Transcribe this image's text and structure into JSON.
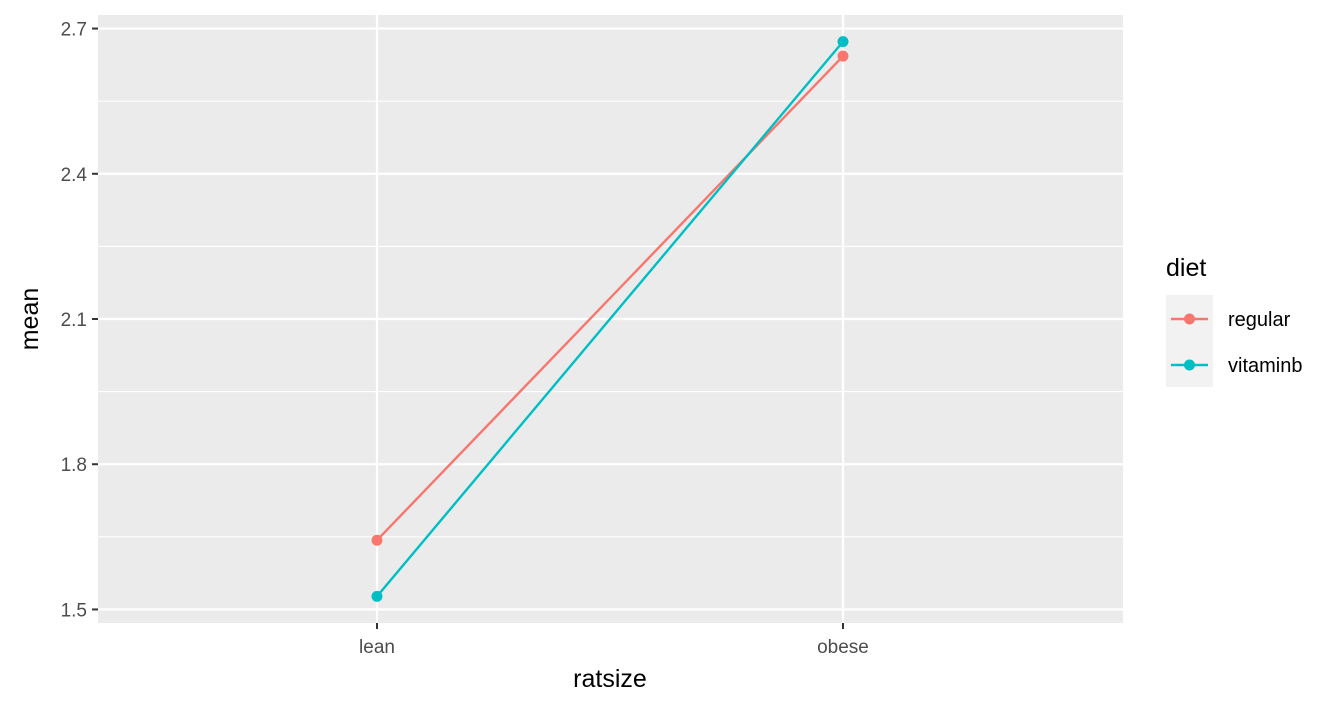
{
  "chart_data": {
    "type": "line",
    "title": "",
    "xlabel": "ratsize",
    "ylabel": "mean",
    "categories": [
      "lean",
      "obese"
    ],
    "ylim": [
      1.472,
      2.728
    ],
    "y_ticks": [
      1.5,
      1.8,
      2.1,
      2.4,
      2.7
    ],
    "y_tick_labels": [
      "1.5",
      "1.8",
      "2.1",
      "2.4",
      "2.7"
    ],
    "grid": true,
    "legend": {
      "title": "diet",
      "position": "right"
    },
    "series": [
      {
        "name": "regular",
        "color": "#F8766D",
        "values": [
          1.643,
          2.643
        ]
      },
      {
        "name": "vitaminb",
        "color": "#00BFC4",
        "values": [
          1.527,
          2.673
        ]
      }
    ]
  }
}
